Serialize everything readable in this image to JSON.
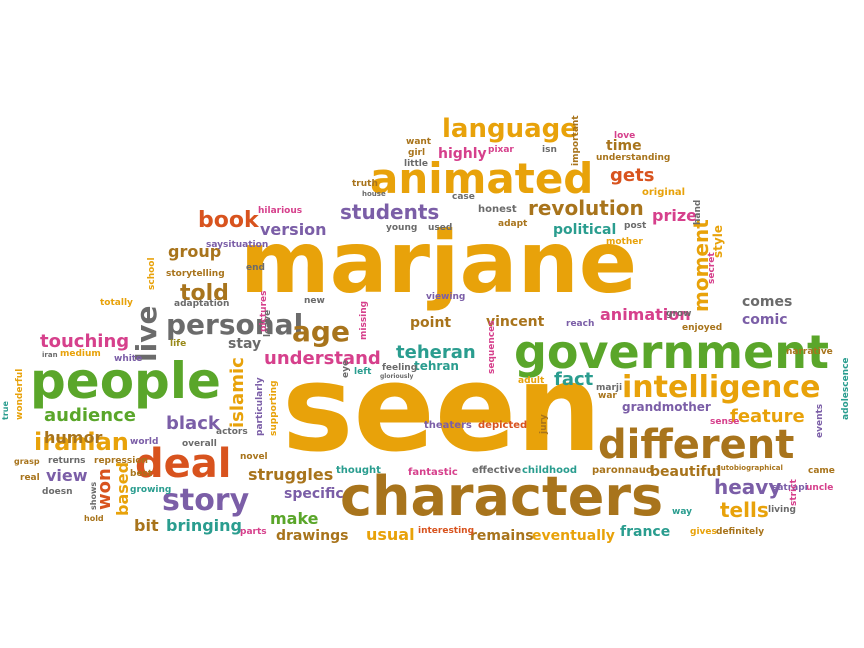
{
  "palette": {
    "orange": "#e8a20a",
    "brown": "#a8741c",
    "green": "#5aa62a",
    "red": "#d8531e",
    "purple": "#7b5ea7",
    "teal": "#2a9d8f",
    "pink": "#d6408c",
    "gray": "#6b6b6b",
    "olive": "#9a8a1a"
  },
  "words": [
    {
      "text": "marjane",
      "color": "orange"
    },
    {
      "text": "seen",
      "color": "orange"
    },
    {
      "text": "characters",
      "color": "brown"
    },
    {
      "text": "people",
      "color": "green"
    },
    {
      "text": "government",
      "color": "green"
    },
    {
      "text": "animated",
      "color": "orange"
    },
    {
      "text": "different",
      "color": "brown"
    },
    {
      "text": "intelligence",
      "color": "orange"
    },
    {
      "text": "deal",
      "color": "red"
    },
    {
      "text": "story",
      "color": "purple"
    },
    {
      "text": "personal",
      "color": "gray"
    },
    {
      "text": "age",
      "color": "brown"
    },
    {
      "text": "language",
      "color": "orange"
    },
    {
      "text": "live",
      "color": "gray"
    },
    {
      "text": "iranian",
      "color": "orange"
    },
    {
      "text": "revolution",
      "color": "brown"
    },
    {
      "text": "students",
      "color": "purple"
    },
    {
      "text": "book",
      "color": "red"
    },
    {
      "text": "moment",
      "color": "orange"
    },
    {
      "text": "heavy",
      "color": "purple"
    },
    {
      "text": "tells",
      "color": "orange"
    },
    {
      "text": "told",
      "color": "brown"
    },
    {
      "text": "touching",
      "color": "pink"
    },
    {
      "text": "teheran",
      "color": "teal"
    },
    {
      "text": "understand",
      "color": "pink"
    },
    {
      "text": "fact",
      "color": "teal"
    },
    {
      "text": "audience",
      "color": "green"
    },
    {
      "text": "black",
      "color": "purple"
    },
    {
      "text": "islamic",
      "color": "orange"
    },
    {
      "text": "feature",
      "color": "orange"
    },
    {
      "text": "struggles",
      "color": "brown"
    },
    {
      "text": "gets",
      "color": "red"
    },
    {
      "text": "prize",
      "color": "pink"
    },
    {
      "text": "version",
      "color": "purple"
    },
    {
      "text": "group",
      "color": "brown"
    },
    {
      "text": "political",
      "color": "teal"
    },
    {
      "text": "animation",
      "color": "pink"
    },
    {
      "text": "comes",
      "color": "gray"
    },
    {
      "text": "comic",
      "color": "purple"
    },
    {
      "text": "highly",
      "color": "pink"
    },
    {
      "text": "time",
      "color": "brown"
    },
    {
      "text": "stay",
      "color": "gray"
    },
    {
      "text": "humor",
      "color": "brown"
    },
    {
      "text": "view",
      "color": "purple"
    },
    {
      "text": "won",
      "color": "red"
    },
    {
      "text": "based",
      "color": "orange"
    },
    {
      "text": "make",
      "color": "green"
    },
    {
      "text": "bit",
      "color": "brown"
    },
    {
      "text": "bringing",
      "color": "teal"
    },
    {
      "text": "drawings",
      "color": "brown"
    },
    {
      "text": "specific",
      "color": "purple"
    },
    {
      "text": "usual",
      "color": "orange"
    },
    {
      "text": "remains",
      "color": "brown"
    },
    {
      "text": "eventually",
      "color": "orange"
    },
    {
      "text": "france",
      "color": "teal"
    },
    {
      "text": "beautiful",
      "color": "brown"
    },
    {
      "text": "grandmother",
      "color": "purple"
    },
    {
      "text": "point",
      "color": "brown"
    },
    {
      "text": "vincent",
      "color": "brown"
    },
    {
      "text": "tehran",
      "color": "teal"
    },
    {
      "text": "fantastic",
      "color": "pink"
    },
    {
      "text": "effective",
      "color": "gray"
    },
    {
      "text": "childhood",
      "color": "teal"
    },
    {
      "text": "paronnaud",
      "color": "brown"
    },
    {
      "text": "theaters",
      "color": "purple"
    },
    {
      "text": "depicted",
      "color": "red"
    },
    {
      "text": "thought",
      "color": "teal"
    },
    {
      "text": "interesting",
      "color": "red"
    },
    {
      "text": "actors",
      "color": "gray"
    },
    {
      "text": "overall",
      "color": "gray"
    },
    {
      "text": "novel",
      "color": "brown"
    },
    {
      "text": "world",
      "color": "purple"
    },
    {
      "text": "returns",
      "color": "gray"
    },
    {
      "text": "repression",
      "color": "brown"
    },
    {
      "text": "medium",
      "color": "orange"
    },
    {
      "text": "white",
      "color": "purple"
    },
    {
      "text": "life",
      "color": "olive"
    },
    {
      "text": "iran",
      "color": "gray"
    },
    {
      "text": "wonderful",
      "color": "orange"
    },
    {
      "text": "true",
      "color": "teal"
    },
    {
      "text": "real",
      "color": "brown"
    },
    {
      "text": "doesn",
      "color": "gray"
    },
    {
      "text": "grasp",
      "color": "brown"
    },
    {
      "text": "shows",
      "color": "gray"
    },
    {
      "text": "hold",
      "color": "brown"
    },
    {
      "text": "best",
      "color": "brown"
    },
    {
      "text": "growing",
      "color": "teal"
    },
    {
      "text": "parts",
      "color": "pink"
    },
    {
      "text": "hilarious",
      "color": "pink"
    },
    {
      "text": "saysituation",
      "color": "purple"
    },
    {
      "text": "end",
      "color": "gray"
    },
    {
      "text": "storytelling",
      "color": "brown"
    },
    {
      "text": "school",
      "color": "orange"
    },
    {
      "text": "totally",
      "color": "orange"
    },
    {
      "text": "adaptation",
      "color": "gray"
    },
    {
      "text": "new",
      "color": "gray"
    },
    {
      "text": "pictures",
      "color": "pink"
    },
    {
      "text": "truth",
      "color": "brown"
    },
    {
      "text": "house",
      "color": "gray"
    },
    {
      "text": "young",
      "color": "gray"
    },
    {
      "text": "used",
      "color": "gray"
    },
    {
      "text": "honest",
      "color": "gray"
    },
    {
      "text": "adapt",
      "color": "brown"
    },
    {
      "text": "case",
      "color": "gray"
    },
    {
      "text": "want",
      "color": "brown"
    },
    {
      "text": "girl",
      "color": "brown"
    },
    {
      "text": "little",
      "color": "gray"
    },
    {
      "text": "pixar",
      "color": "pink"
    },
    {
      "text": "isn",
      "color": "gray"
    },
    {
      "text": "important",
      "color": "brown"
    },
    {
      "text": "love",
      "color": "pink"
    },
    {
      "text": "understanding",
      "color": "brown"
    },
    {
      "text": "original",
      "color": "orange"
    },
    {
      "text": "hand",
      "color": "gray"
    },
    {
      "text": "post",
      "color": "gray"
    },
    {
      "text": "mother",
      "color": "orange"
    },
    {
      "text": "secret",
      "color": "pink"
    },
    {
      "text": "style",
      "color": "orange"
    },
    {
      "text": "grow",
      "color": "gray"
    },
    {
      "text": "enjoyed",
      "color": "brown"
    },
    {
      "text": "narrative",
      "color": "brown"
    },
    {
      "text": "reach",
      "color": "purple"
    },
    {
      "text": "viewing",
      "color": "purple"
    },
    {
      "text": "missing",
      "color": "pink"
    },
    {
      "text": "leave",
      "color": "gray"
    },
    {
      "text": "supporting",
      "color": "orange"
    },
    {
      "text": "particularly",
      "color": "purple"
    },
    {
      "text": "eye",
      "color": "gray"
    },
    {
      "text": "left",
      "color": "teal"
    },
    {
      "text": "feeling",
      "color": "gray"
    },
    {
      "text": "sequences",
      "color": "pink"
    },
    {
      "text": "adult",
      "color": "orange"
    },
    {
      "text": "war",
      "color": "brown"
    },
    {
      "text": "marji",
      "color": "gray"
    },
    {
      "text": "sense",
      "color": "pink"
    },
    {
      "text": "events",
      "color": "purple"
    },
    {
      "text": "adolescence",
      "color": "teal"
    },
    {
      "text": "came",
      "color": "brown"
    },
    {
      "text": "uncle",
      "color": "pink"
    },
    {
      "text": "autobiographical",
      "color": "brown"
    },
    {
      "text": "satrapi",
      "color": "purple"
    },
    {
      "text": "living",
      "color": "gray"
    },
    {
      "text": "strict",
      "color": "pink"
    },
    {
      "text": "definitely",
      "color": "brown"
    },
    {
      "text": "gives",
      "color": "orange"
    },
    {
      "text": "way",
      "color": "teal"
    },
    {
      "text": "jury",
      "color": "brown"
    },
    {
      "text": "gloriously",
      "color": "gray"
    }
  ]
}
